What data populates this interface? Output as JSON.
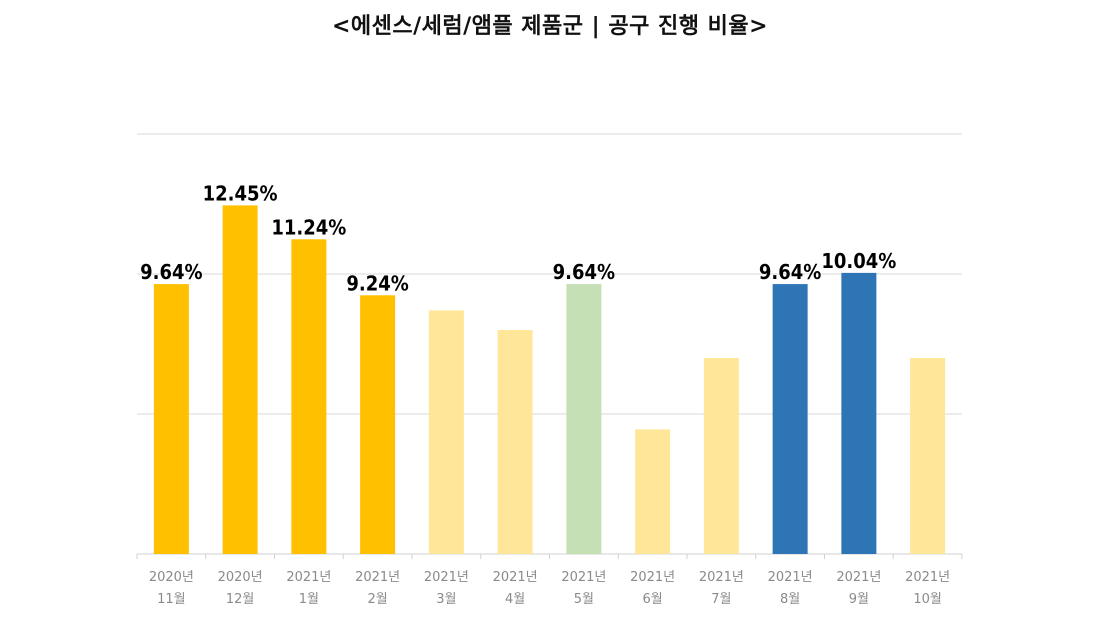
{
  "chart_data": {
    "type": "bar",
    "title": "<에센스/세럼/앰플 제품군 | 공구 진행 비율>",
    "xlabel": "",
    "ylabel": "",
    "ylim": [
      0,
      15
    ],
    "grid": true,
    "categories": [
      [
        "2020년",
        "11월"
      ],
      [
        "2020년",
        "12월"
      ],
      [
        "2021년",
        "1월"
      ],
      [
        "2021년",
        "2월"
      ],
      [
        "2021년",
        "3월"
      ],
      [
        "2021년",
        "4월"
      ],
      [
        "2021년",
        "5월"
      ],
      [
        "2021년",
        "6월"
      ],
      [
        "2021년",
        "7월"
      ],
      [
        "2021년",
        "8월"
      ],
      [
        "2021년",
        "9월"
      ],
      [
        "2021년",
        "10월"
      ]
    ],
    "values": [
      9.64,
      12.45,
      11.24,
      9.24,
      8.7,
      8.0,
      9.64,
      4.45,
      7.0,
      9.64,
      10.04,
      7.0
    ],
    "labels": [
      "9.64%",
      "12.45%",
      "11.24%",
      "9.24%",
      "",
      "",
      "9.64%",
      "",
      "",
      "9.64%",
      "10.04%",
      ""
    ],
    "colors": [
      "#FFC000",
      "#FFC000",
      "#FFC000",
      "#FFC000",
      "#FFE699",
      "#FFE699",
      "#C5E0B4",
      "#FFE699",
      "#FFE699",
      "#2E75B6",
      "#2E75B6",
      "#FFE699"
    ]
  }
}
